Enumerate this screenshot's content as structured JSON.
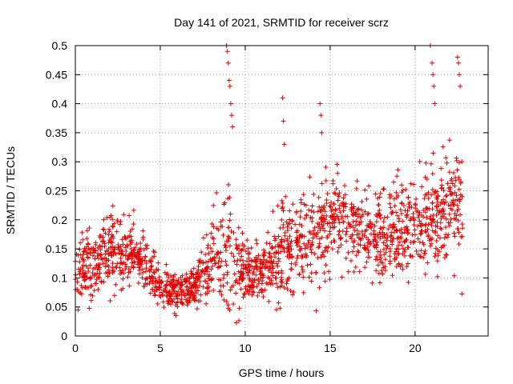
{
  "chart_data": {
    "type": "scatter",
    "title": "Day 141 of 2021, SRMTID for receiver scrz",
    "xlabel": "GPS time / hours",
    "ylabel": "SRMTID / TECUs",
    "xlim": [
      0,
      24.3
    ],
    "ylim": [
      0,
      0.5
    ],
    "xticks": [
      0,
      5,
      10,
      15,
      20
    ],
    "xtick_labels": [
      "0",
      "5",
      "10",
      "15",
      "20"
    ],
    "yticks": [
      0,
      0.05,
      0.1,
      0.15,
      0.2,
      0.25,
      0.3,
      0.35,
      0.4,
      0.45,
      0.5
    ],
    "ytick_labels": [
      "0",
      "0.05",
      "0.1",
      "0.15",
      "0.2",
      "0.25",
      "0.3",
      "0.35",
      "0.4",
      "0.45",
      "0.5"
    ],
    "grid": true,
    "marker": "+",
    "color": "#e00000",
    "x_range_data": [
      0,
      22.8
    ],
    "point_density_per_hour": 80,
    "envelope": {
      "x": [
        0,
        1,
        2,
        3,
        4,
        5,
        6,
        7,
        8,
        9,
        10,
        11,
        12,
        13,
        14,
        15,
        16,
        17,
        18,
        19,
        20,
        21,
        22,
        22.8
      ],
      "center": [
        0.11,
        0.12,
        0.15,
        0.15,
        0.13,
        0.08,
        0.075,
        0.085,
        0.12,
        0.14,
        0.11,
        0.11,
        0.14,
        0.16,
        0.17,
        0.2,
        0.2,
        0.18,
        0.17,
        0.18,
        0.19,
        0.2,
        0.22,
        0.22
      ],
      "spread": [
        0.05,
        0.06,
        0.07,
        0.07,
        0.05,
        0.03,
        0.03,
        0.035,
        0.08,
        0.1,
        0.05,
        0.05,
        0.08,
        0.07,
        0.08,
        0.08,
        0.07,
        0.07,
        0.08,
        0.08,
        0.08,
        0.09,
        0.09,
        0.08
      ]
    },
    "outliers": [
      {
        "x": 8.9,
        "y": 0.5
      },
      {
        "x": 8.95,
        "y": 0.49
      },
      {
        "x": 9.0,
        "y": 0.47
      },
      {
        "x": 9.05,
        "y": 0.44
      },
      {
        "x": 9.1,
        "y": 0.43
      },
      {
        "x": 9.15,
        "y": 0.4
      },
      {
        "x": 9.2,
        "y": 0.38
      },
      {
        "x": 9.25,
        "y": 0.36
      },
      {
        "x": 12.2,
        "y": 0.41
      },
      {
        "x": 12.25,
        "y": 0.37
      },
      {
        "x": 12.3,
        "y": 0.33
      },
      {
        "x": 14.4,
        "y": 0.4
      },
      {
        "x": 14.45,
        "y": 0.38
      },
      {
        "x": 14.5,
        "y": 0.35
      },
      {
        "x": 20.9,
        "y": 0.5
      },
      {
        "x": 21.0,
        "y": 0.47
      },
      {
        "x": 21.05,
        "y": 0.45
      },
      {
        "x": 21.1,
        "y": 0.43
      },
      {
        "x": 21.15,
        "y": 0.4
      },
      {
        "x": 22.5,
        "y": 0.48
      },
      {
        "x": 22.55,
        "y": 0.47
      },
      {
        "x": 22.6,
        "y": 0.45
      },
      {
        "x": 22.65,
        "y": 0.43
      }
    ]
  }
}
